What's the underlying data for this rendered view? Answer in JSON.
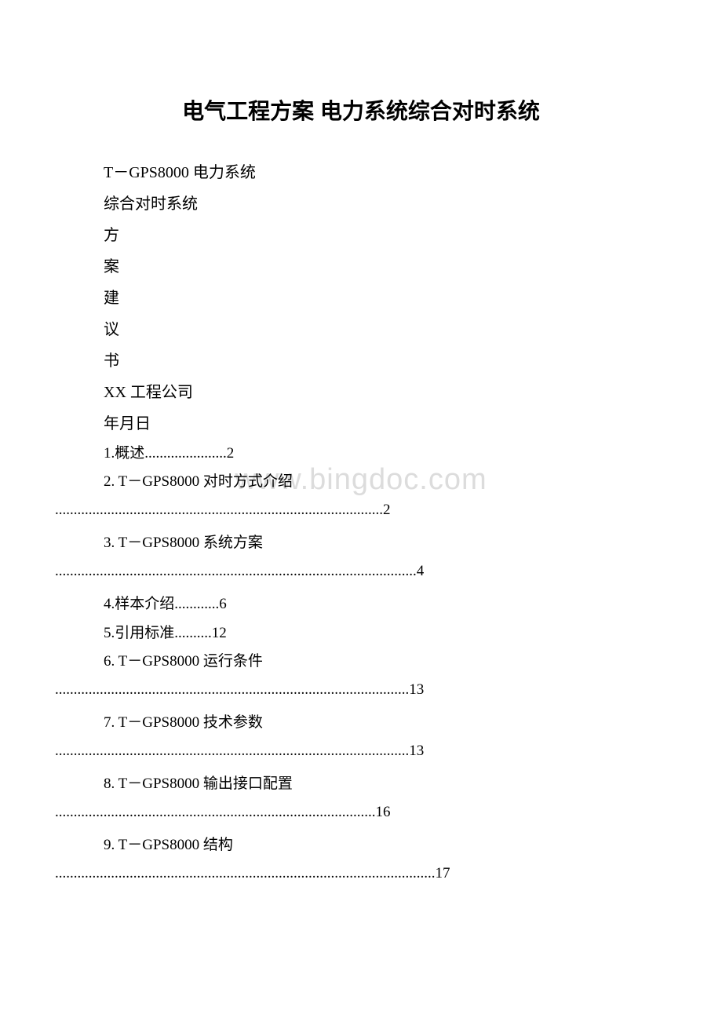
{
  "title": "电气工程方案 电力系统综合对时系统",
  "lines": [
    "T－GPS8000 电力系统",
    "综合对时系统",
    "方",
    "案",
    "建",
    "议",
    "书",
    "XX 工程公司",
    "年月日"
  ],
  "toc": [
    {
      "text": "1.概述......................2",
      "cont": ""
    },
    {
      "text": "2. T－GPS8000 对时方式介绍",
      "cont": "........................................................................................2"
    },
    {
      "text": "3. T－GPS8000 系统方案",
      "cont": ".................................................................................................4"
    },
    {
      "text": "4.样本介绍............6",
      "cont": ""
    },
    {
      "text": "5.引用标准..........12",
      "cont": ""
    },
    {
      "text": "6. T－GPS8000 运行条件",
      "cont": "...............................................................................................13"
    },
    {
      "text": "7. T－GPS8000 技术参数",
      "cont": "...............................................................................................13"
    },
    {
      "text": "8. T－GPS8000 输出接口配置",
      "cont": "......................................................................................16"
    },
    {
      "text": "9. T－GPS8000 结构",
      "cont": "......................................................................................................17"
    }
  ],
  "watermark": "www.bingdoc.com",
  "colors": {
    "text": "#000000",
    "background": "#ffffff",
    "watermark": "#dcdcdc"
  },
  "typography": {
    "title_fontsize": 28,
    "body_fontsize": 20,
    "toc_fontsize": 19,
    "watermark_fontsize": 38
  }
}
